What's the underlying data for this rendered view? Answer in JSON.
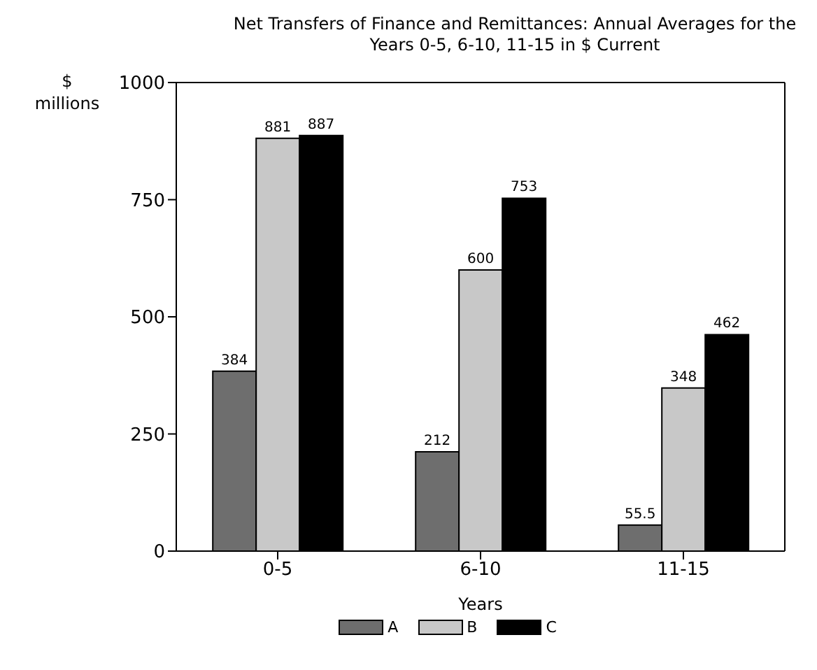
{
  "chart_data": {
    "type": "bar",
    "title": "Net Transfers of Finance and Remittances: Annual Averages for the Years 0-5, 6-10, 11-15 in $ Current",
    "xlabel": "Years",
    "ylabel": "$ millions",
    "categories": [
      "0-5",
      "6-10",
      "11-15"
    ],
    "series": [
      {
        "name": "A",
        "color": "#6e6e6e",
        "values": [
          384,
          212,
          55.5
        ]
      },
      {
        "name": "B",
        "color": "#c8c8c8",
        "values": [
          881,
          600,
          348
        ]
      },
      {
        "name": "C",
        "color": "#000000",
        "values": [
          887,
          753,
          462
        ]
      }
    ],
    "ylim": [
      0,
      1000
    ],
    "yticks": [
      0,
      250,
      500,
      750,
      1000
    ],
    "data_labels": true,
    "legend": "bottom",
    "grid": false
  }
}
